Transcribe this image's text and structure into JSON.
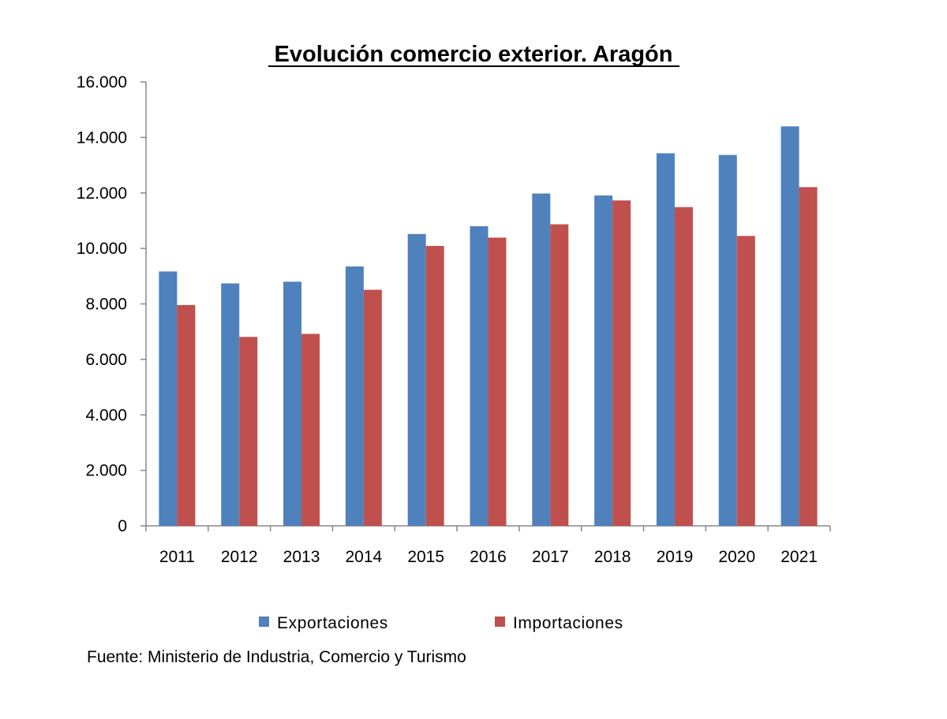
{
  "chart_data": {
    "type": "bar",
    "title": "Evolución comercio exterior. Aragón",
    "xlabel": "",
    "ylabel": "",
    "categories": [
      "2011",
      "2012",
      "2013",
      "2014",
      "2015",
      "2016",
      "2017",
      "2018",
      "2019",
      "2020",
      "2021"
    ],
    "series": [
      {
        "name": "Exportaciones",
        "color": "#4f81bd",
        "values": [
          9170,
          8740,
          8800,
          9350,
          10520,
          10800,
          11980,
          11910,
          13430,
          13370,
          14400
        ]
      },
      {
        "name": "Importaciones",
        "color": "#c0504d",
        "values": [
          7960,
          6810,
          6920,
          8510,
          10090,
          10390,
          10870,
          11730,
          11490,
          10450,
          12210
        ]
      }
    ],
    "ylim": [
      0,
      16000
    ],
    "yticks": [
      0,
      2000,
      4000,
      6000,
      8000,
      10000,
      12000,
      14000,
      16000
    ],
    "ytick_labels": [
      "0",
      "2.000",
      "4.000",
      "6.000",
      "8.000",
      "10.000",
      "12.000",
      "14.000",
      "16.000"
    ],
    "grid": false,
    "legend_position": "bottom"
  },
  "source_note": "Fuente: Ministerio de Industria, Comercio y Turismo"
}
